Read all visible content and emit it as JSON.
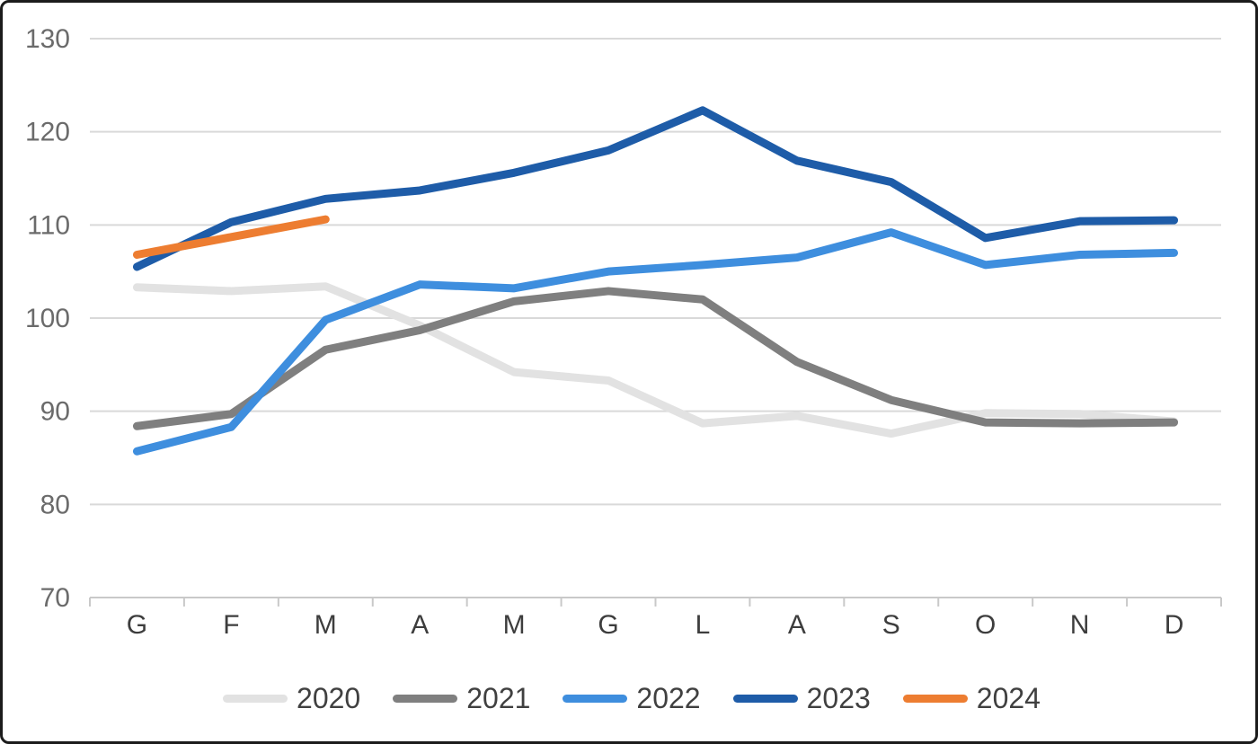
{
  "chart_data": {
    "type": "line",
    "title": "",
    "xlabel": "",
    "ylabel": "",
    "categories": [
      "G",
      "F",
      "M",
      "A",
      "M",
      "G",
      "L",
      "A",
      "S",
      "O",
      "N",
      "D"
    ],
    "yticks": [
      70,
      80,
      90,
      100,
      110,
      120,
      130
    ],
    "ylim": [
      70,
      130
    ],
    "grid": true,
    "legend_position": "bottom",
    "series": [
      {
        "name": "2020",
        "color": "#E2E2E2",
        "values": [
          103.3,
          102.9,
          103.4,
          99.2,
          94.2,
          93.3,
          88.7,
          89.5,
          87.6,
          89.8,
          89.7,
          88.9
        ]
      },
      {
        "name": "2021",
        "color": "#7F7F7F",
        "values": [
          88.4,
          89.7,
          96.6,
          98.7,
          101.8,
          102.9,
          102.0,
          95.3,
          91.2,
          88.8,
          88.7,
          88.8
        ]
      },
      {
        "name": "2022",
        "color": "#3E8EDE",
        "values": [
          85.7,
          88.3,
          99.8,
          103.6,
          103.2,
          105.0,
          105.7,
          106.5,
          109.2,
          105.7,
          106.8,
          107.0
        ]
      },
      {
        "name": "2023",
        "color": "#1E5CA8",
        "values": [
          105.5,
          110.3,
          112.8,
          113.7,
          115.6,
          118.0,
          122.3,
          116.9,
          114.6,
          108.6,
          110.4,
          110.5
        ]
      },
      {
        "name": "2024",
        "color": "#ED7D31",
        "values": [
          106.8,
          108.7,
          110.6
        ]
      }
    ],
    "colors": {
      "gridline": "#D9D9D9",
      "axis_line": "#C9C9C9",
      "y_tick_label": "#6B6B6B",
      "x_tick_label": "#3D3D3D"
    }
  }
}
